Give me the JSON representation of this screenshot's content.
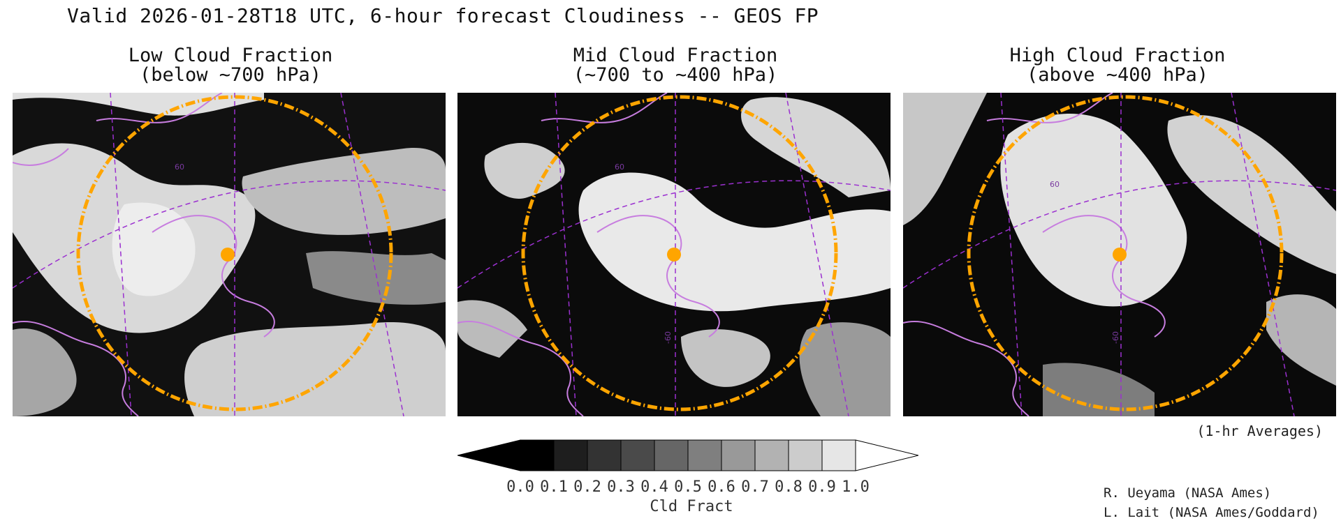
{
  "title": "Valid 2026-01-28T18 UTC, 6-hour forecast Cloudiness -- GEOS FP",
  "panels": [
    {
      "title_line1": "Low Cloud Fraction",
      "title_line2": "(below ~700 hPa)",
      "variable": "low-cloud-fraction"
    },
    {
      "title_line1": "Mid Cloud Fraction",
      "title_line2": "(~700 to ~400 hPa)",
      "variable": "mid-cloud-fraction"
    },
    {
      "title_line1": "High Cloud Fraction",
      "title_line2": "(above ~400 hPa)",
      "variable": "high-cloud-fraction"
    }
  ],
  "colorbar": {
    "label": "Cld Fract",
    "ticks": [
      "0.0",
      "0.1",
      "0.2",
      "0.3",
      "0.4",
      "0.5",
      "0.6",
      "0.7",
      "0.8",
      "0.9",
      "1.0"
    ],
    "colors": [
      "#000000",
      "#1e1e1e",
      "#333333",
      "#4a4a4a",
      "#666666",
      "#7f7f7f",
      "#999999",
      "#b2b2b2",
      "#cccccc",
      "#e6e6e6",
      "#ffffff"
    ]
  },
  "averages_note": "(1-hr Averages)",
  "credits": [
    "R. Ueyama (NASA Ames)",
    "L. Lait (NASA Ames/Goddard)"
  ],
  "graticule_labels": {
    "lat": "60",
    "lon": "-60"
  },
  "colors": {
    "coastline": "#c77ddf",
    "grid": "#9b30d0",
    "range_ring": "#ffa500",
    "marker": "#ffa500"
  }
}
